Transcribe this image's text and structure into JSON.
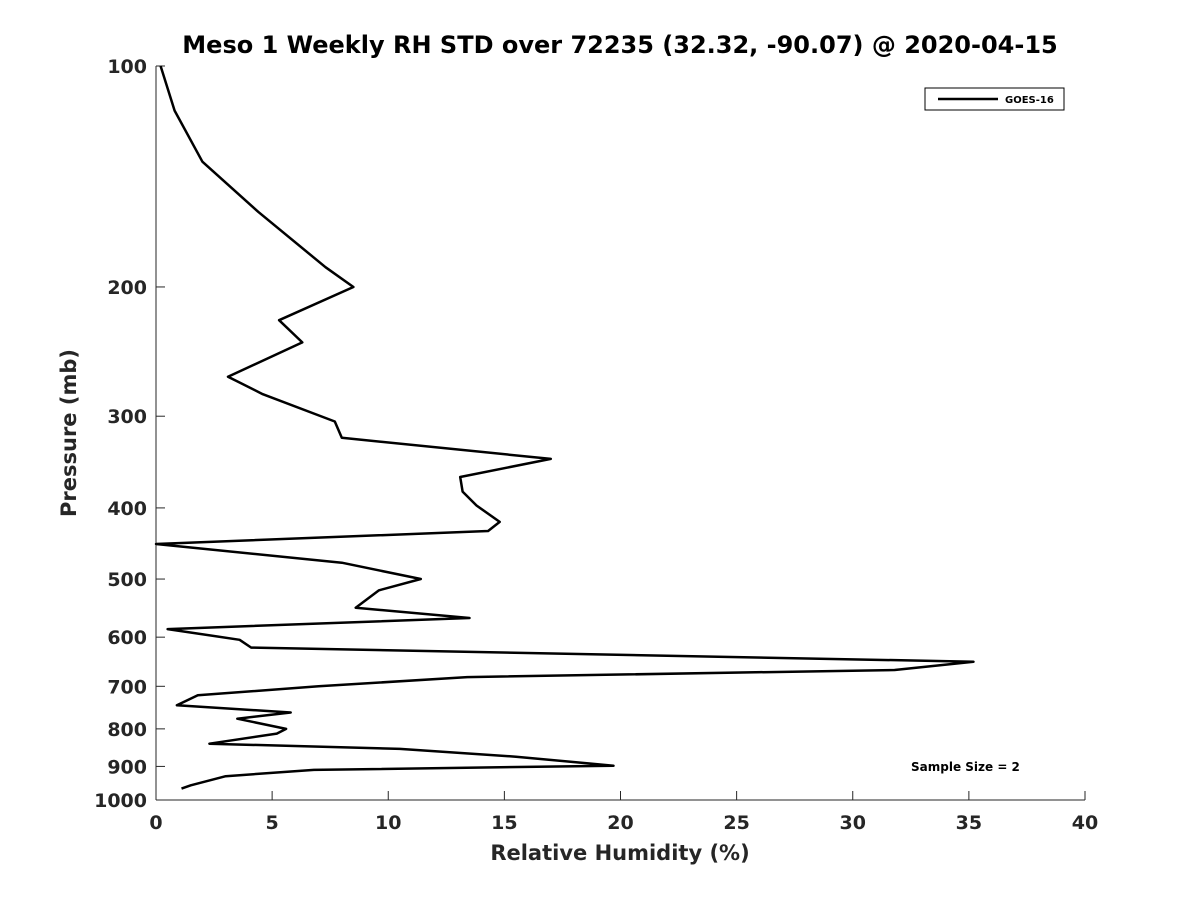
{
  "chart_data": {
    "type": "line",
    "title": "Meso 1 Weekly RH STD over 72235 (32.32, -90.07) @ 2020-04-15",
    "xlabel": "Relative Humidity (%)",
    "ylabel": "Pressure (mb)",
    "xlim": [
      0,
      40
    ],
    "ylim": [
      100,
      1000
    ],
    "yscale": "log",
    "y_reversed": true,
    "grid": false,
    "x_ticks": [
      0,
      5,
      10,
      15,
      20,
      25,
      30,
      35,
      40
    ],
    "y_ticks": [
      100,
      200,
      300,
      400,
      500,
      600,
      700,
      800,
      900,
      1000
    ],
    "legend": {
      "position": "top-right",
      "entries": [
        "GOES-16"
      ]
    },
    "annotation": "Sample Size = 2",
    "series": [
      {
        "name": "GOES-16",
        "color": "#000000",
        "points": [
          [
            0.2,
            100
          ],
          [
            0.8,
            115
          ],
          [
            2.0,
            135
          ],
          [
            4.4,
            158
          ],
          [
            7.3,
            188
          ],
          [
            8.5,
            200
          ],
          [
            5.3,
            222
          ],
          [
            6.3,
            238
          ],
          [
            3.1,
            265
          ],
          [
            4.6,
            280
          ],
          [
            7.7,
            305
          ],
          [
            8.0,
            321
          ],
          [
            17.0,
            343
          ],
          [
            13.1,
            363
          ],
          [
            13.2,
            380
          ],
          [
            13.8,
            397
          ],
          [
            14.8,
            418
          ],
          [
            14.3,
            430
          ],
          [
            0.0,
            448
          ],
          [
            8.0,
            475
          ],
          [
            11.4,
            500
          ],
          [
            9.6,
            518
          ],
          [
            8.6,
            547
          ],
          [
            13.5,
            565
          ],
          [
            0.5,
            585
          ],
          [
            3.6,
            605
          ],
          [
            4.1,
            620
          ],
          [
            35.2,
            648
          ],
          [
            31.8,
            665
          ],
          [
            13.4,
            680
          ],
          [
            7.0,
            700
          ],
          [
            1.8,
            720
          ],
          [
            0.9,
            743
          ],
          [
            5.8,
            760
          ],
          [
            3.5,
            775
          ],
          [
            5.6,
            800
          ],
          [
            5.2,
            812
          ],
          [
            2.3,
            838
          ],
          [
            10.5,
            852
          ],
          [
            15.5,
            873
          ],
          [
            19.7,
            898
          ],
          [
            6.8,
            910
          ],
          [
            3.0,
            928
          ],
          [
            1.5,
            955
          ],
          [
            1.1,
            965
          ]
        ]
      }
    ]
  }
}
